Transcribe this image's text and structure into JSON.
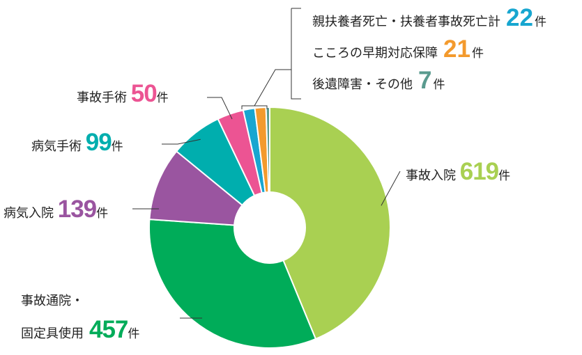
{
  "chart_data": {
    "type": "pie",
    "title": "",
    "unit": "件",
    "slices": [
      {
        "name": "事故入院",
        "value": 619,
        "color": "#a9d052"
      },
      {
        "name": "事故通院・固定具使用",
        "name_line1": "事故通院・",
        "name_line2": "固定具使用",
        "value": 457,
        "color": "#00ac59"
      },
      {
        "name": "病気入院",
        "value": 139,
        "color": "#9a55a0"
      },
      {
        "name": "病気手術",
        "value": 99,
        "color": "#00aeae"
      },
      {
        "name": "事故手術",
        "value": 50,
        "color": "#ec5493"
      },
      {
        "name": "親扶養者死亡・扶養者事故死亡計",
        "value": 22,
        "color": "#17a6d0"
      },
      {
        "name": "こころの早期対応保障",
        "value": 21,
        "color": "#f39a2d"
      },
      {
        "name": "後遺障害・その他",
        "value": 7,
        "color": "#5a9b8f"
      }
    ],
    "donut": true
  }
}
